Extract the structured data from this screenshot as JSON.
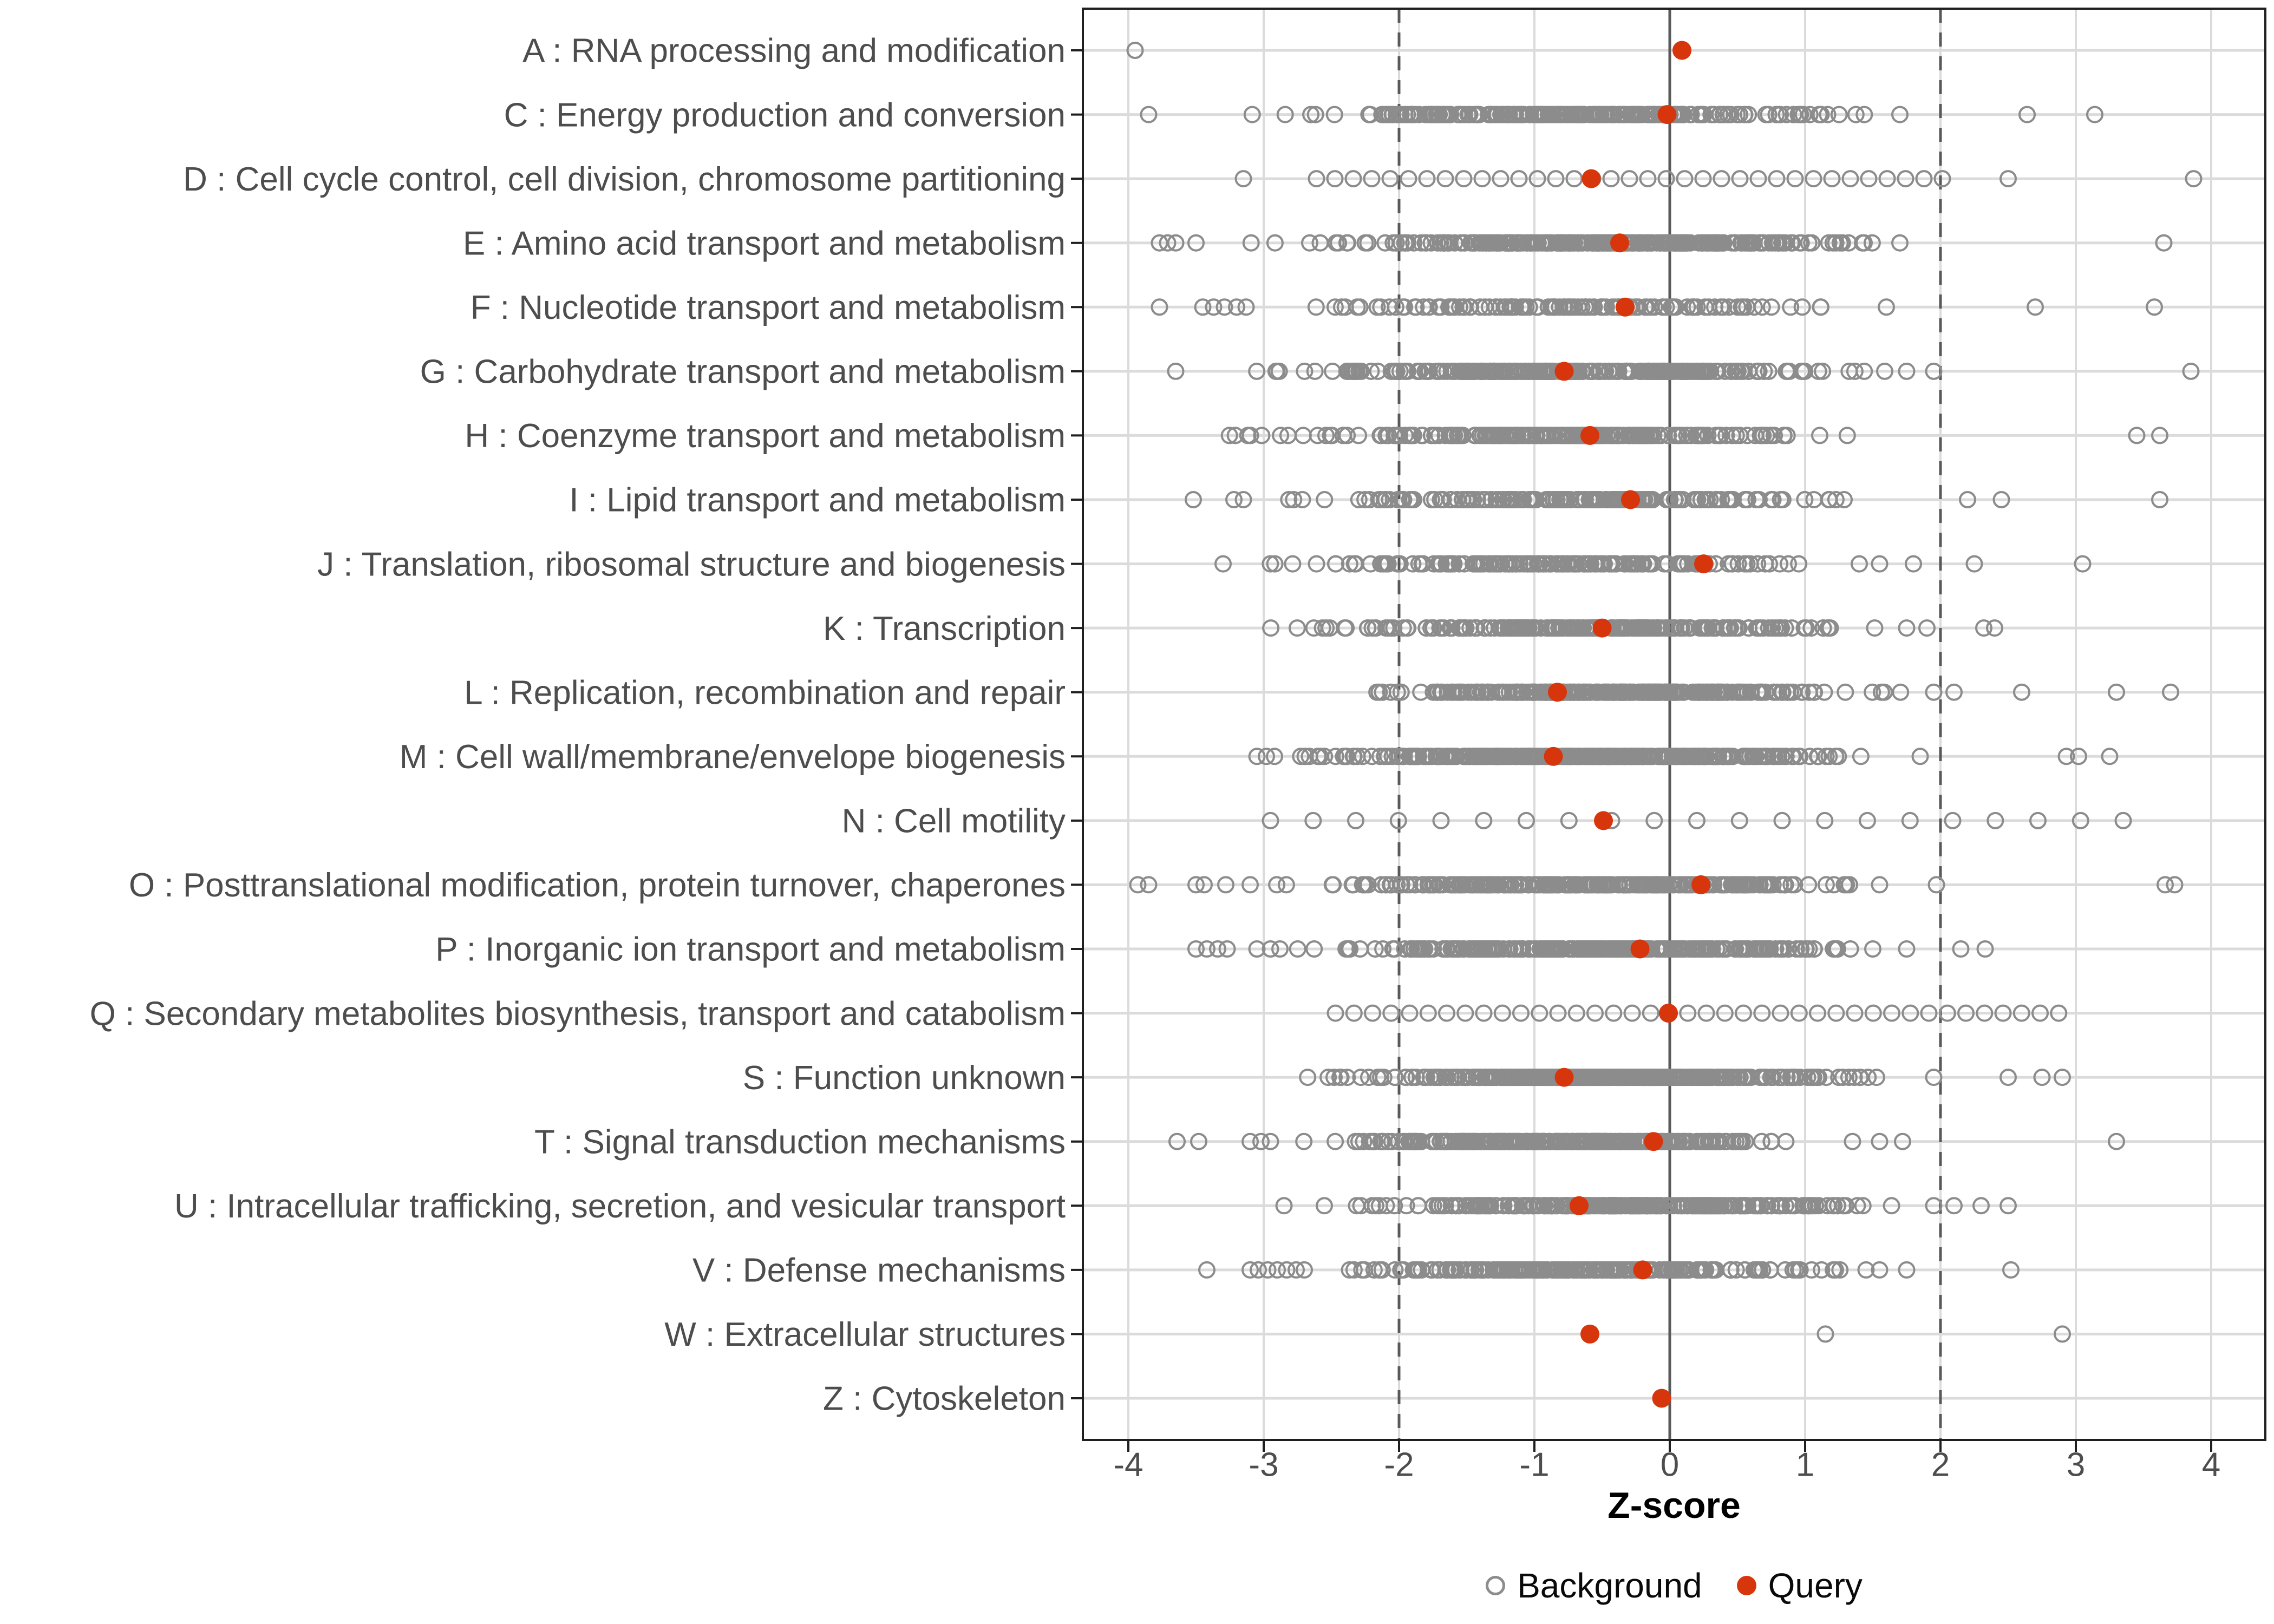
{
  "chart_data": {
    "type": "scatter",
    "subtype": "strip-dot-plot",
    "title": "",
    "xlabel": "Z-score",
    "ylabel": "",
    "xlim": [
      -4.34,
      4.4
    ],
    "x_ticks": [
      -4,
      -3,
      -2,
      -1,
      0,
      1,
      2,
      3,
      4
    ],
    "x_tick_labels": [
      "-4",
      "-3",
      "-2",
      "-1",
      "0",
      "1",
      "2",
      "3",
      "4"
    ],
    "grid": true,
    "legend_position": "bottom",
    "reference_lines": {
      "solid_at": 0,
      "dashed_at": [
        -2,
        2
      ]
    },
    "legend": [
      {
        "label": "Background",
        "marker": "open-circle",
        "color": "#8C8C8C"
      },
      {
        "label": "Query",
        "marker": "filled-circle",
        "color": "#D7350C"
      }
    ],
    "colors": {
      "query": "#D7350C",
      "background_stroke": "#8C8C8C",
      "grid": "#DBDBDB",
      "reference": "#595959",
      "panel_border": "#1F1F1F",
      "axis_text": "#4D4D4D"
    },
    "categories": [
      {
        "code": "A",
        "label": "A : RNA processing and modification",
        "query_z": 0.09,
        "background": {
          "style": "list",
          "extra_points": [
            -3.95
          ]
        }
      },
      {
        "code": "C",
        "label": "C : Energy production and conversion",
        "query_z": -0.02,
        "background": {
          "style": "cluster",
          "n": 240,
          "center": -0.7,
          "spread": 1.0,
          "range": [
            -3.6,
            1.55
          ],
          "extra_points": [
            -3.85,
            1.7,
            2.64,
            3.14
          ]
        }
      },
      {
        "code": "D",
        "label": "D : Cell cycle control, cell division, chromosome partitioning",
        "query_z": -0.58,
        "background": {
          "style": "even",
          "range": [
            -2.61,
            2.06
          ],
          "step": 0.136,
          "extra_points": [
            -3.15,
            2.5,
            3.87
          ]
        }
      },
      {
        "code": "E",
        "label": "E : Amino acid transport and metabolism",
        "query_z": -0.37,
        "background": {
          "style": "cluster",
          "n": 330,
          "center": -0.5,
          "spread": 0.95,
          "range": [
            -3.45,
            1.55
          ],
          "extra_points": [
            -3.77,
            -3.71,
            -3.65,
            -3.5,
            1.7,
            3.65
          ]
        }
      },
      {
        "code": "F",
        "label": "F : Nucleotide transport and metabolism",
        "query_z": -0.33,
        "background": {
          "style": "cluster",
          "n": 130,
          "center": -0.8,
          "spread": 0.85,
          "range": [
            -3.0,
            1.45
          ],
          "extra_points": [
            -3.77,
            -3.45,
            -3.37,
            -3.29,
            -3.2,
            -3.13,
            1.6,
            2.7,
            3.58
          ]
        }
      },
      {
        "code": "G",
        "label": "G : Carbohydrate transport and metabolism",
        "query_z": -0.78,
        "background": {
          "style": "cluster",
          "n": 280,
          "center": -0.75,
          "spread": 0.95,
          "range": [
            -3.45,
            1.6
          ],
          "extra_points": [
            -3.65,
            1.75,
            1.95,
            3.85
          ]
        }
      },
      {
        "code": "H",
        "label": "H : Coenzyme transport and metabolism",
        "query_z": -0.59,
        "background": {
          "style": "cluster",
          "n": 230,
          "center": -0.8,
          "spread": 0.9,
          "range": [
            -3.6,
            1.55
          ],
          "extra_points": [
            3.45,
            3.62
          ]
        }
      },
      {
        "code": "I",
        "label": "I : Lipid transport and metabolism",
        "query_z": -0.29,
        "background": {
          "style": "cluster",
          "n": 180,
          "center": -0.7,
          "spread": 0.95,
          "range": [
            -3.0,
            1.55
          ],
          "extra_points": [
            -3.52,
            -3.22,
            -3.15,
            2.2,
            2.45,
            3.62
          ]
        }
      },
      {
        "code": "J",
        "label": "J : Translation, ribosomal structure and biogenesis",
        "query_z": 0.25,
        "background": {
          "style": "cluster",
          "n": 190,
          "center": -0.85,
          "spread": 0.85,
          "range": [
            -3.05,
            1.25
          ],
          "extra_points": [
            -3.3,
            1.4,
            1.55,
            1.8,
            2.25,
            3.05
          ]
        }
      },
      {
        "code": "K",
        "label": "K : Transcription",
        "query_z": -0.5,
        "background": {
          "style": "cluster",
          "n": 250,
          "center": -0.55,
          "spread": 0.9,
          "range": [
            -3.05,
            1.6
          ],
          "extra_points": [
            1.75,
            1.9,
            2.32,
            2.4
          ]
        }
      },
      {
        "code": "L",
        "label": "L : Replication, recombination and repair",
        "query_z": -0.83,
        "background": {
          "style": "cluster",
          "n": 300,
          "center": -0.35,
          "spread": 0.8,
          "range": [
            -2.2,
            1.85
          ],
          "extra_points": [
            1.95,
            2.1,
            2.6,
            3.3,
            3.7
          ]
        }
      },
      {
        "code": "M",
        "label": "M : Cell wall/membrane/envelope biogenesis",
        "query_z": -0.86,
        "background": {
          "style": "cluster",
          "n": 380,
          "center": -0.55,
          "spread": 0.9,
          "range": [
            -2.85,
            1.5
          ],
          "extra_points": [
            -3.05,
            -2.98,
            -2.92,
            1.85,
            2.93,
            3.02,
            3.25
          ]
        }
      },
      {
        "code": "N",
        "label": "N : Cell motility",
        "query_z": -0.49,
        "background": {
          "style": "even",
          "range": [
            -2.95,
            3.35
          ],
          "step": 0.315,
          "extra_points": []
        }
      },
      {
        "code": "O",
        "label": "O : Posttranslational modification, protein turnover, chaperones",
        "query_z": 0.23,
        "background": {
          "style": "cluster",
          "n": 300,
          "center": -0.6,
          "spread": 0.95,
          "range": [
            -2.95,
            1.4
          ],
          "extra_points": [
            -3.93,
            -3.85,
            -3.5,
            -3.44,
            -3.28,
            -3.1,
            1.55,
            1.97,
            3.66,
            3.73
          ]
        }
      },
      {
        "code": "P",
        "label": "P : Inorganic ion transport and metabolism",
        "query_z": -0.22,
        "background": {
          "style": "cluster",
          "n": 320,
          "center": -0.55,
          "spread": 0.85,
          "range": [
            -2.8,
            1.35
          ],
          "extra_points": [
            -3.5,
            -3.42,
            -3.34,
            -3.27,
            -3.05,
            -2.95,
            -2.88,
            1.5,
            1.75,
            2.15,
            2.33
          ]
        }
      },
      {
        "code": "Q",
        "label": "Q : Secondary metabolites biosynthesis, transport and catabolism",
        "query_z": -0.01,
        "background": {
          "style": "even",
          "range": [
            -2.47,
            2.88
          ],
          "step": 0.137,
          "extra_points": []
        }
      },
      {
        "code": "S",
        "label": "S : Function unknown",
        "query_z": -0.78,
        "background": {
          "style": "cluster",
          "n": 430,
          "center": -0.5,
          "spread": 0.85,
          "range": [
            -2.72,
            1.7
          ],
          "extra_points": [
            1.95,
            2.5,
            2.75,
            2.9
          ]
        }
      },
      {
        "code": "T",
        "label": "T : Signal transduction mechanisms",
        "query_z": -0.12,
        "background": {
          "style": "cluster",
          "n": 300,
          "center": -0.85,
          "spread": 0.8,
          "range": [
            -2.85,
            1.2
          ],
          "extra_points": [
            -3.64,
            -3.48,
            -3.1,
            -3.02,
            -2.95,
            1.35,
            1.55,
            1.72,
            3.3
          ]
        }
      },
      {
        "code": "U",
        "label": "U : Intracellular trafficking, secretion, and vesicular transport",
        "query_z": -0.67,
        "background": {
          "style": "cluster",
          "n": 310,
          "center": -0.3,
          "spread": 0.9,
          "range": [
            -2.62,
            1.85
          ],
          "extra_points": [
            -2.85,
            1.95,
            2.1,
            2.3,
            2.5
          ]
        }
      },
      {
        "code": "V",
        "label": "V : Defense mechanisms",
        "query_z": -0.2,
        "background": {
          "style": "cluster",
          "n": 240,
          "center": -0.6,
          "spread": 0.85,
          "range": [
            -2.6,
            1.3
          ],
          "extra_points": [
            -3.42,
            -3.1,
            -3.04,
            -2.97,
            -2.9,
            -2.83,
            -2.76,
            -2.7,
            1.45,
            1.55,
            1.75,
            2.52
          ]
        }
      },
      {
        "code": "W",
        "label": "W : Extracellular structures",
        "query_z": -0.59,
        "background": {
          "style": "list",
          "extra_points": [
            1.15,
            2.9
          ]
        }
      },
      {
        "code": "Z",
        "label": "Z : Cytoskeleton",
        "query_z": -0.06,
        "background": {
          "style": "none",
          "extra_points": []
        }
      }
    ]
  }
}
